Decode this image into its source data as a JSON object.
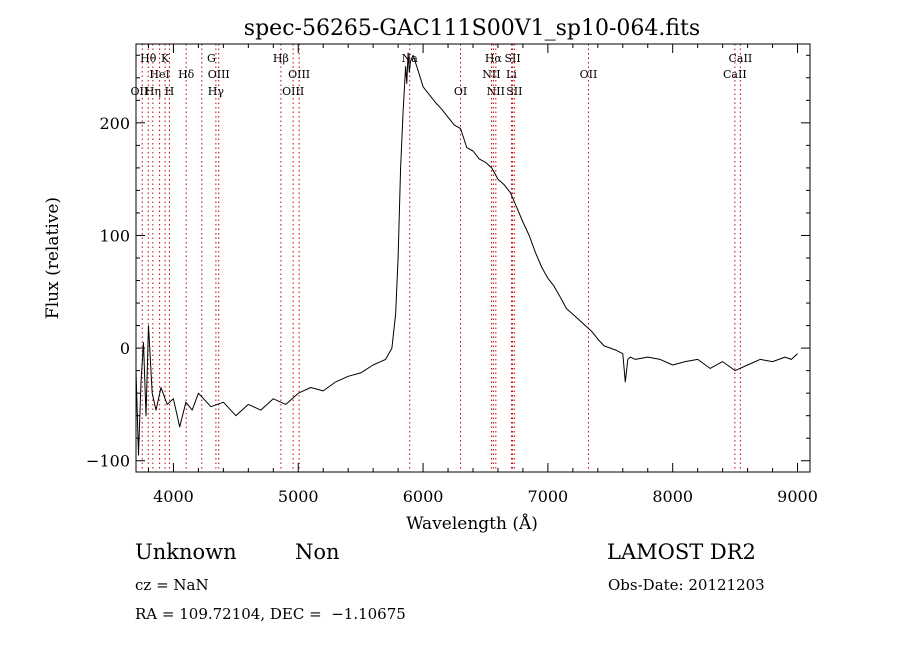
{
  "chart_data": {
    "type": "line",
    "title": "spec-56265-GAC111S00V1_sp10-064.fits",
    "xlabel": "Wavelength (Å)",
    "ylabel": "Flux (relative)",
    "xlim": [
      3700,
      9100
    ],
    "ylim": [
      -110,
      270
    ],
    "x_ticks": [
      4000,
      5000,
      6000,
      7000,
      8000,
      9000
    ],
    "x_tick_labels": [
      "4000",
      "5000",
      "6000",
      "7000",
      "8000",
      "9000"
    ],
    "y_ticks": [
      -100,
      0,
      100,
      200
    ],
    "y_tick_labels": [
      "−100",
      "0",
      "100",
      "200"
    ],
    "series": [
      {
        "color": "#000000",
        "x": [
          3700,
          3720,
          3740,
          3760,
          3780,
          3800,
          3830,
          3860,
          3900,
          3950,
          4000,
          4050,
          4100,
          4150,
          4200,
          4300,
          4400,
          4500,
          4600,
          4700,
          4800,
          4900,
          5000,
          5100,
          5200,
          5300,
          5400,
          5500,
          5600,
          5700,
          5750,
          5780,
          5800,
          5820,
          5840,
          5860,
          5870,
          5880,
          5890,
          5900,
          5920,
          5950,
          6000,
          6050,
          6100,
          6150,
          6200,
          6250,
          6300,
          6350,
          6400,
          6450,
          6500,
          6550,
          6600,
          6650,
          6700,
          6750,
          6800,
          6850,
          6900,
          6950,
          7000,
          7050,
          7100,
          7150,
          7200,
          7250,
          7300,
          7350,
          7400,
          7450,
          7500,
          7550,
          7600,
          7620,
          7640,
          7660,
          7700,
          7800,
          7900,
          8000,
          8100,
          8200,
          8300,
          8400,
          8500,
          8600,
          8700,
          8800,
          8900,
          8950,
          9000
        ],
        "y": [
          -20,
          -95,
          -30,
          5,
          -60,
          20,
          -40,
          -55,
          -35,
          -50,
          -45,
          -70,
          -48,
          -55,
          -40,
          -52,
          -48,
          -60,
          -50,
          -55,
          -45,
          -50,
          -40,
          -35,
          -38,
          -30,
          -25,
          -22,
          -15,
          -10,
          0,
          30,
          80,
          160,
          210,
          250,
          235,
          262,
          245,
          255,
          260,
          250,
          232,
          225,
          218,
          212,
          205,
          198,
          195,
          178,
          175,
          168,
          165,
          160,
          150,
          145,
          138,
          125,
          112,
          100,
          85,
          72,
          62,
          55,
          45,
          35,
          30,
          25,
          20,
          15,
          8,
          2,
          0,
          -2,
          -5,
          -30,
          -10,
          -8,
          -10,
          -8,
          -10,
          -15,
          -12,
          -10,
          -18,
          -12,
          -20,
          -15,
          -10,
          -12,
          -8,
          -10,
          -5
        ]
      }
    ],
    "line_markers": {
      "color": "#cc0000",
      "x": [
        3750,
        3798,
        3835,
        3889,
        3933,
        3968,
        4102,
        4227,
        4340,
        4363,
        4861,
        4959,
        5007,
        5893,
        6300,
        6548,
        6563,
        6583,
        6708,
        6717,
        6731,
        7325,
        8498,
        8542
      ]
    },
    "line_labels": [
      {
        "text": "Hθ",
        "x": 3798,
        "row": 1
      },
      {
        "text": "K",
        "x": 3933,
        "row": 1
      },
      {
        "text": "G",
        "x": 4304,
        "row": 1
      },
      {
        "text": "Hβ",
        "x": 4861,
        "row": 1
      },
      {
        "text": "Na",
        "x": 5893,
        "row": 1
      },
      {
        "text": "Hα",
        "x": 6563,
        "row": 1
      },
      {
        "text": "SII",
        "x": 6717,
        "row": 1
      },
      {
        "text": "CaII",
        "x": 8542,
        "row": 1
      },
      {
        "text": "HeI",
        "x": 3889,
        "row": 2
      },
      {
        "text": "Hδ",
        "x": 4102,
        "row": 2
      },
      {
        "text": "OIII",
        "x": 4363,
        "row": 2
      },
      {
        "text": "OIII",
        "x": 5007,
        "row": 2
      },
      {
        "text": "NII",
        "x": 6548,
        "row": 2
      },
      {
        "text": "Li",
        "x": 6708,
        "row": 2
      },
      {
        "text": "OII",
        "x": 7325,
        "row": 2
      },
      {
        "text": "CaII",
        "x": 8498,
        "row": 2
      },
      {
        "text": "OII",
        "x": 3727,
        "row": 3
      },
      {
        "text": "Hη",
        "x": 3835,
        "row": 3
      },
      {
        "text": "H",
        "x": 3968,
        "row": 3
      },
      {
        "text": "Hγ",
        "x": 4340,
        "row": 3
      },
      {
        "text": "OIII",
        "x": 4959,
        "row": 3
      },
      {
        "text": "OI",
        "x": 6300,
        "row": 3
      },
      {
        "text": "NII",
        "x": 6583,
        "row": 3
      },
      {
        "text": "SII",
        "x": 6731,
        "row": 3
      }
    ]
  },
  "info": {
    "class_label": "Unknown",
    "subclass_label": "Non",
    "survey": "LAMOST DR2",
    "cz": "cz = NaN",
    "obs_date": "Obs-Date: 20121203",
    "coords": "RA = 109.72104, DEC =  −1.10675"
  }
}
